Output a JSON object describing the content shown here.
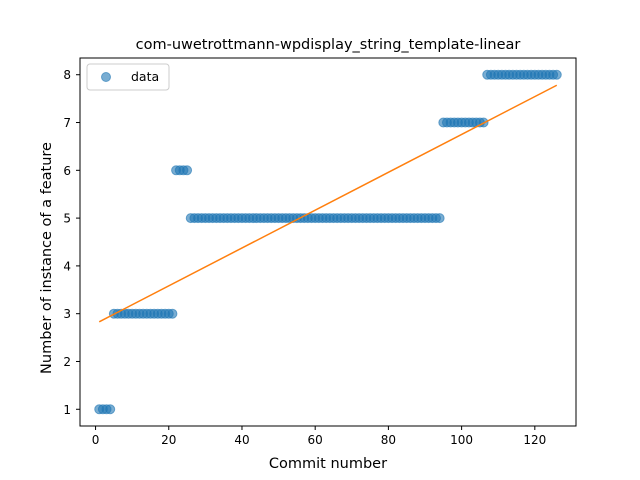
{
  "chart_data": {
    "type": "scatter",
    "title": "com-uwetrottmann-wpdisplay_string_template-linear",
    "xlabel": "Commit number",
    "ylabel": "Number of instance of a feature",
    "xlim": [
      -4.25,
      131.25
    ],
    "ylim": [
      0.65,
      8.35
    ],
    "xticks": [
      0,
      20,
      40,
      60,
      80,
      100,
      120
    ],
    "yticks": [
      1,
      2,
      3,
      4,
      5,
      6,
      7,
      8
    ],
    "grid": false,
    "legend": {
      "placement": "upper-left",
      "entries": [
        "data"
      ]
    },
    "colors": {
      "data": "#1f77b4",
      "fit": "#ff7f0e"
    },
    "series": [
      {
        "name": "data",
        "kind": "scatter",
        "x": [
          1,
          2,
          3,
          4,
          5,
          6,
          7,
          8,
          9,
          10,
          11,
          12,
          13,
          14,
          15,
          16,
          17,
          18,
          19,
          20,
          21,
          22,
          23,
          24,
          25,
          26,
          27,
          28,
          29,
          30,
          31,
          32,
          33,
          34,
          35,
          36,
          37,
          38,
          39,
          40,
          41,
          42,
          43,
          44,
          45,
          46,
          47,
          48,
          49,
          50,
          51,
          52,
          53,
          54,
          55,
          56,
          57,
          58,
          59,
          60,
          61,
          62,
          63,
          64,
          65,
          66,
          67,
          68,
          69,
          70,
          71,
          72,
          73,
          74,
          75,
          76,
          77,
          78,
          79,
          80,
          81,
          82,
          83,
          84,
          85,
          86,
          87,
          88,
          89,
          90,
          91,
          92,
          93,
          94,
          95,
          96,
          97,
          98,
          99,
          100,
          101,
          102,
          103,
          104,
          105,
          106,
          107,
          108,
          109,
          110,
          111,
          112,
          113,
          114,
          115,
          116,
          117,
          118,
          119,
          120,
          121,
          122,
          123,
          124,
          125,
          126
        ],
        "y": [
          1,
          1,
          1,
          1,
          3,
          3,
          3,
          3,
          3,
          3,
          3,
          3,
          3,
          3,
          3,
          3,
          3,
          3,
          3,
          3,
          3,
          6,
          6,
          6,
          6,
          5,
          5,
          5,
          5,
          5,
          5,
          5,
          5,
          5,
          5,
          5,
          5,
          5,
          5,
          5,
          5,
          5,
          5,
          5,
          5,
          5,
          5,
          5,
          5,
          5,
          5,
          5,
          5,
          5,
          5,
          5,
          5,
          5,
          5,
          5,
          5,
          5,
          5,
          5,
          5,
          5,
          5,
          5,
          5,
          5,
          5,
          5,
          5,
          5,
          5,
          5,
          5,
          5,
          5,
          5,
          5,
          5,
          5,
          5,
          5,
          5,
          5,
          5,
          5,
          5,
          5,
          5,
          5,
          5,
          7,
          7,
          7,
          7,
          7,
          7,
          7,
          7,
          7,
          7,
          7,
          7,
          8,
          8,
          8,
          8,
          8,
          8,
          8,
          8,
          8,
          8,
          8,
          8,
          8,
          8,
          8,
          8,
          8,
          8,
          8,
          8
        ]
      },
      {
        "name": "",
        "kind": "line",
        "x": [
          1,
          126
        ],
        "y": [
          2.83,
          7.78
        ]
      }
    ]
  }
}
